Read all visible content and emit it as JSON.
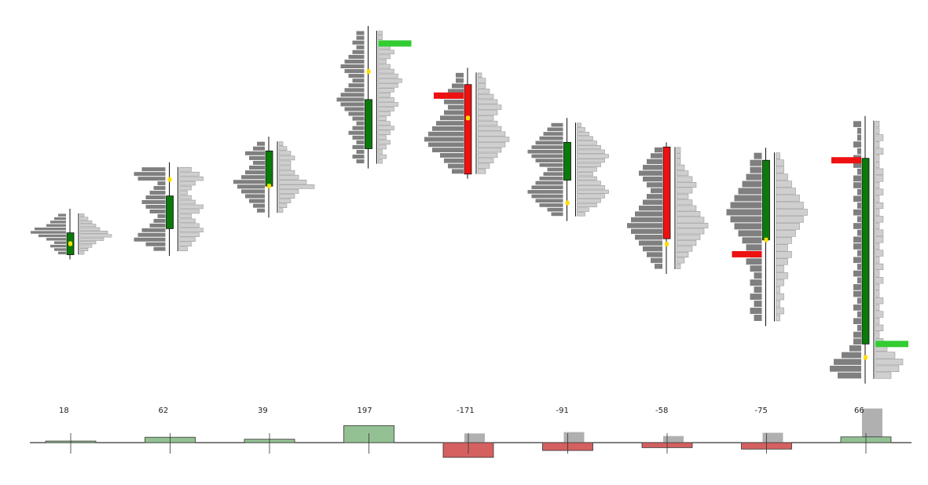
{
  "chart_data": {
    "type": "footprint-candlestick",
    "price_ylim": [
      0,
      100
    ],
    "delta_ylim": [
      -200,
      200
    ],
    "colors": {
      "up_body": "#0a7a0a",
      "down_body": "#ee1111",
      "buy_profile": "#7f7f7f",
      "sell_profile": "#cfcfcf",
      "poc_marker": "#ffdd00",
      "imbalance_buy": "#33cc33",
      "imbalance_sell": "#ee1111",
      "delta_pos": "#93c193",
      "delta_neg": "#d46060",
      "delta_ref": "#b0b0b0"
    },
    "candles": [
      {
        "open": 42.8,
        "close": 51.7,
        "high": 59.6,
        "low": 42.8,
        "poc": 47.3,
        "buy": [
          2,
          3,
          4,
          3,
          5,
          7,
          9,
          8,
          5,
          4,
          3,
          2
        ],
        "sell": [
          1,
          2,
          3,
          4,
          6,
          8,
          7,
          5,
          4,
          3,
          2,
          1
        ],
        "delta": 18,
        "delta_ref": 0
      },
      {
        "open": 53.4,
        "close": 66.7,
        "high": 78.5,
        "low": 44.2,
        "poc": 73.4,
        "buy": [
          3,
          5,
          8,
          7,
          6,
          4,
          3,
          2,
          4,
          5,
          6,
          5,
          4,
          3,
          2,
          7,
          8,
          6
        ],
        "sell": [
          2,
          3,
          4,
          5,
          6,
          5,
          4,
          3,
          5,
          6,
          4,
          3,
          2,
          3,
          4,
          6,
          5,
          3
        ],
        "delta": 62,
        "delta_ref": 0
      },
      {
        "open": 70.7,
        "close": 85.0,
        "high": 88.9,
        "low": 59.8,
        "poc": 70.7,
        "buy": [
          2,
          3,
          4,
          5,
          6,
          7,
          8,
          6,
          5,
          4,
          3,
          4,
          5,
          3,
          2
        ],
        "sell": [
          1,
          2,
          3,
          4,
          5,
          9,
          7,
          5,
          4,
          3,
          3,
          4,
          3,
          2,
          1
        ],
        "delta": 39,
        "delta_ref": 0
      },
      {
        "open": 85.9,
        "close": 105.9,
        "high": 133.9,
        "low": 79.8,
        "poc": 117.3,
        "buy": [
          2,
          3,
          2,
          3,
          2,
          3,
          4,
          3,
          2,
          3,
          4,
          5,
          6,
          7,
          6,
          5,
          4,
          3,
          4,
          5,
          6,
          5,
          4,
          3,
          2,
          3,
          2,
          2
        ],
        "sell": [
          1,
          2,
          1,
          2,
          3,
          2,
          3,
          4,
          3,
          2,
          3,
          4,
          5,
          4,
          3,
          4,
          5,
          6,
          5,
          4,
          3,
          2,
          3,
          4,
          3,
          2,
          1,
          1
        ],
        "delta": 197,
        "delta_ref": 0,
        "imbalance_buy_at": 128.7
      },
      {
        "open": 112.0,
        "close": 75.6,
        "high": 116.9,
        "low": 75.6,
        "poc": 98.4,
        "buy": [
          3,
          4,
          5,
          6,
          8,
          9,
          10,
          9,
          8,
          7,
          6,
          5,
          4,
          5,
          6,
          4,
          3,
          2,
          2
        ],
        "sell": [
          2,
          3,
          4,
          5,
          6,
          7,
          8,
          7,
          6,
          5,
          4,
          5,
          6,
          5,
          4,
          3,
          2,
          2,
          1
        ],
        "delta": -171,
        "delta_ref": 28,
        "imbalance_sell_at": 107.5
      },
      {
        "open": 73.1,
        "close": 88.5,
        "high": 96.5,
        "low": 58.4,
        "poc": 63.9,
        "buy": [
          3,
          4,
          6,
          7,
          8,
          9,
          8,
          7,
          6,
          5,
          4,
          6,
          7,
          8,
          9,
          8,
          7,
          6,
          5,
          4,
          3
        ],
        "sell": [
          2,
          3,
          5,
          6,
          7,
          8,
          7,
          6,
          5,
          4,
          5,
          6,
          7,
          8,
          7,
          6,
          5,
          4,
          3,
          2,
          1
        ],
        "delta": -91,
        "delta_ref": 32
      },
      {
        "open": 86.6,
        "close": 49.3,
        "high": 86.6,
        "low": 36.9,
        "poc": 47.1,
        "buy": [
          2,
          3,
          4,
          5,
          6,
          7,
          8,
          9,
          8,
          7,
          6,
          5,
          4,
          3,
          4,
          5,
          6,
          5,
          4,
          3,
          2
        ],
        "sell": [
          1,
          2,
          3,
          4,
          5,
          6,
          7,
          8,
          7,
          6,
          5,
          4,
          3,
          4,
          5,
          4,
          3,
          2,
          1,
          1,
          1
        ],
        "delta": -58,
        "delta_ref": 20
      },
      {
        "open": 48.8,
        "close": 81.2,
        "high": 84.4,
        "low": 15.7,
        "poc": 48.8,
        "buy": [
          2,
          3,
          2,
          3,
          2,
          3,
          2,
          3,
          4,
          3,
          4,
          5,
          6,
          7,
          8,
          9,
          8,
          7,
          6,
          5,
          4,
          3,
          3,
          2
        ],
        "sell": [
          1,
          2,
          1,
          2,
          1,
          2,
          3,
          2,
          3,
          4,
          3,
          4,
          5,
          6,
          7,
          8,
          7,
          6,
          5,
          4,
          3,
          2,
          2,
          1
        ],
        "delta": -75,
        "delta_ref": 30,
        "imbalance_sell_at": 43.0
      },
      {
        "open": 6.5,
        "close": 82.0,
        "high": 97.3,
        "low": -7.7,
        "poc": 1.0,
        "buy": [
          6,
          8,
          7,
          5,
          3,
          2,
          2,
          1,
          2,
          1,
          2,
          1,
          2,
          2,
          1,
          2,
          1,
          2,
          1,
          2,
          2,
          1,
          2,
          1,
          2,
          1,
          2,
          1,
          2,
          2,
          1,
          2,
          2,
          1,
          2,
          1,
          1,
          2
        ],
        "sell": [
          4,
          6,
          7,
          5,
          3,
          2,
          1,
          2,
          1,
          2,
          1,
          2,
          1,
          1,
          2,
          1,
          2,
          1,
          2,
          1,
          2,
          2,
          1,
          2,
          1,
          2,
          1,
          2,
          1,
          2,
          2,
          1,
          1,
          2,
          1,
          2,
          1,
          1
        ],
        "delta": 66,
        "delta_ref": 104,
        "imbalance_buy_at": 6.5,
        "imbalance_sell_at": 81.2
      }
    ]
  },
  "delta_labels": [
    "18",
    "62",
    "39",
    "197",
    "-171",
    "-91",
    "-58",
    "-75",
    "66"
  ]
}
